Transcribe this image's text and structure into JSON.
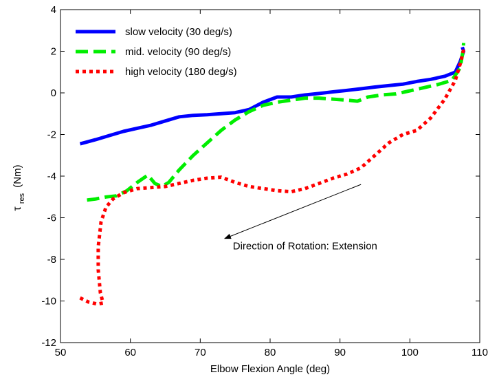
{
  "chart_data": {
    "type": "line",
    "title": "",
    "xlabel": "Elbow Flexion Angle (deg)",
    "ylabel": "τ",
    "ylabel_subscript": "res",
    "ylabel_unit": "(Nm)",
    "xlim": [
      50,
      110
    ],
    "ylim": [
      -12,
      4
    ],
    "xticks": [
      50,
      60,
      70,
      80,
      90,
      100,
      110
    ],
    "yticks": [
      -12,
      -10,
      -8,
      -6,
      -4,
      -2,
      0,
      2,
      4
    ],
    "grid": false,
    "legend_position": "top-left",
    "series": [
      {
        "name": "slow velocity (30 deg/s)",
        "color": "#0000ff",
        "style": "solid",
        "x": [
          52.8,
          55,
          57,
          59,
          61,
          63,
          65,
          67,
          69,
          71,
          73,
          75,
          77,
          79,
          81,
          83,
          85,
          87,
          89,
          91,
          93,
          95,
          97,
          99,
          101,
          103,
          105,
          106.5,
          107.2,
          107.7,
          107.5
        ],
        "y": [
          -2.45,
          -2.25,
          -2.05,
          -1.85,
          -1.7,
          -1.55,
          -1.35,
          -1.15,
          -1.08,
          -1.05,
          -1.0,
          -0.95,
          -0.8,
          -0.45,
          -0.2,
          -0.2,
          -0.1,
          -0.03,
          0.05,
          0.12,
          0.2,
          0.28,
          0.35,
          0.42,
          0.55,
          0.65,
          0.8,
          1.0,
          1.5,
          2.0,
          2.2
        ]
      },
      {
        "name": "mid. velocity (90 deg/s)",
        "color": "#00ee00",
        "style": "dashed",
        "x": [
          53.8,
          55,
          56.5,
          58,
          59.5,
          61,
          62.5,
          63.5,
          64.5,
          65.5,
          67,
          69,
          71,
          73,
          75,
          77,
          79,
          81,
          83,
          85,
          87,
          89,
          91,
          92.5,
          94,
          96,
          98,
          100,
          102,
          104,
          106,
          107.2,
          107.6,
          107.7
        ],
        "y": [
          -5.15,
          -5.1,
          -5.0,
          -4.95,
          -4.7,
          -4.3,
          -3.95,
          -4.35,
          -4.5,
          -4.3,
          -3.7,
          -3.0,
          -2.4,
          -1.8,
          -1.3,
          -0.9,
          -0.6,
          -0.45,
          -0.35,
          -0.25,
          -0.25,
          -0.3,
          -0.35,
          -0.4,
          -0.2,
          -0.1,
          -0.05,
          0.1,
          0.25,
          0.4,
          0.6,
          1.2,
          2.0,
          2.4
        ]
      },
      {
        "name": "high velocity (180 deg/s)",
        "color": "#ff0000",
        "style": "dotted",
        "x": [
          52.8,
          54,
          55.3,
          56.1,
          55.7,
          55.4,
          55.4,
          55.8,
          56.5,
          57.5,
          59,
          61,
          63,
          65,
          67,
          69,
          71,
          73,
          75,
          77,
          79,
          81,
          83,
          85,
          87,
          89,
          91,
          93,
          95,
          97,
          99,
          101,
          103,
          105,
          106.5,
          107.3,
          107.7
        ],
        "y": [
          -9.85,
          -10.05,
          -10.15,
          -10.1,
          -9.6,
          -8.5,
          -7.4,
          -6.2,
          -5.5,
          -5.1,
          -4.8,
          -4.6,
          -4.55,
          -4.5,
          -4.35,
          -4.2,
          -4.1,
          -4.05,
          -4.3,
          -4.5,
          -4.6,
          -4.7,
          -4.75,
          -4.6,
          -4.35,
          -4.1,
          -3.9,
          -3.6,
          -3.0,
          -2.4,
          -2.0,
          -1.8,
          -1.2,
          -0.3,
          0.6,
          1.5,
          2.1
        ]
      }
    ],
    "annotations": [
      {
        "text": "Direction of Rotation: Extension",
        "text_x": 85,
        "text_y": -7.35,
        "arrow_from": [
          93,
          -4.4
        ],
        "arrow_to": [
          73.5,
          -7.0
        ]
      }
    ]
  }
}
